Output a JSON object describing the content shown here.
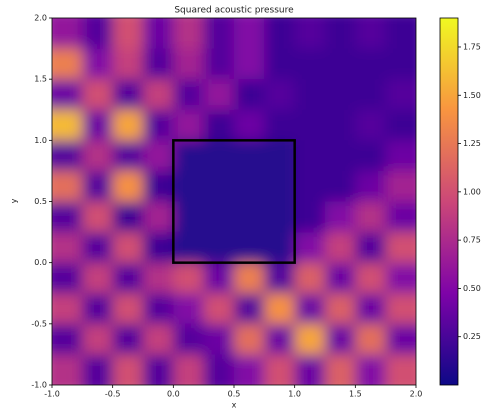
{
  "chart_data": {
    "type": "heatmap",
    "title": "Squared acoustic pressure",
    "x_label": "x",
    "y_label": "y",
    "colormap": "plasma",
    "xlim": [
      -1.0,
      2.0
    ],
    "ylim": [
      -1.0,
      2.0
    ],
    "xticks": [
      {
        "value": -1.0,
        "label": "-1.0"
      },
      -0.5,
      {
        "value": 0.0,
        "label": "0.0"
      },
      0.5,
      {
        "value": 1.0,
        "label": "1.0"
      },
      1.5,
      {
        "value": 2.0,
        "label": "2.0"
      }
    ],
    "yticks": [
      {
        "value": -1.0,
        "label": "-1.0"
      },
      -0.5,
      {
        "value": 0.0,
        "label": "0.0"
      },
      0.5,
      {
        "value": 1.0,
        "label": "1.0"
      },
      1.5,
      {
        "value": 2.0,
        "label": "2.0"
      }
    ],
    "clim": [
      0,
      1.9
    ],
    "cticks": [
      {
        "value": 0.25,
        "label": "0.25"
      },
      {
        "value": 0.5,
        "label": "0.50"
      },
      {
        "value": 0.75,
        "label": "0.75"
      },
      {
        "value": 1.0,
        "label": "1.00"
      },
      {
        "value": 1.25,
        "label": "1.25"
      },
      {
        "value": 1.5,
        "label": "1.50"
      },
      {
        "value": 1.75,
        "label": "1.75"
      }
    ],
    "x": [
      -0.875,
      -0.625,
      -0.375,
      -0.125,
      0.125,
      0.375,
      0.625,
      0.875,
      1.125,
      1.375,
      1.625,
      1.875
    ],
    "y": [
      1.875,
      1.625,
      1.375,
      1.125,
      0.875,
      0.625,
      0.375,
      0.125,
      -0.125,
      -0.375,
      -0.625,
      -0.875
    ],
    "z": [
      [
        0.6,
        0.3,
        1.0,
        0.4,
        0.8,
        0.3,
        0.5,
        0.2,
        0.3,
        0.2,
        0.3,
        0.2
      ],
      [
        1.3,
        0.5,
        0.9,
        0.3,
        0.7,
        0.3,
        0.5,
        0.2,
        0.2,
        0.2,
        0.2,
        0.2
      ],
      [
        0.4,
        1.0,
        0.3,
        0.9,
        0.3,
        0.6,
        0.2,
        0.3,
        0.2,
        0.2,
        0.2,
        0.3
      ],
      [
        1.6,
        0.4,
        1.5,
        0.3,
        0.6,
        0.2,
        0.4,
        0.2,
        0.2,
        0.2,
        0.3,
        0.2
      ],
      [
        0.3,
        0.8,
        0.3,
        0.6,
        0.1,
        0.1,
        0.1,
        0.1,
        0.2,
        0.2,
        0.2,
        0.4
      ],
      [
        1.2,
        0.3,
        1.4,
        0.2,
        0.1,
        0.1,
        0.1,
        0.1,
        0.2,
        0.2,
        0.4,
        0.7
      ],
      [
        0.3,
        1.0,
        0.2,
        0.7,
        0.1,
        0.1,
        0.1,
        0.1,
        0.2,
        0.5,
        0.8,
        0.4
      ],
      [
        0.8,
        0.3,
        1.0,
        0.2,
        0.1,
        0.1,
        0.1,
        0.1,
        0.5,
        0.9,
        0.3,
        1.0
      ],
      [
        0.3,
        0.9,
        0.3,
        0.8,
        1.0,
        0.4,
        1.3,
        0.3,
        1.1,
        0.4,
        1.0,
        0.5
      ],
      [
        0.9,
        0.3,
        1.0,
        0.3,
        0.5,
        1.0,
        0.3,
        1.4,
        0.4,
        1.1,
        0.4,
        1.0
      ],
      [
        0.3,
        0.9,
        0.3,
        0.9,
        0.3,
        0.4,
        1.2,
        0.4,
        1.5,
        0.4,
        1.2,
        0.4
      ],
      [
        0.8,
        0.3,
        1.0,
        0.3,
        0.9,
        0.3,
        0.5,
        1.0,
        0.4,
        1.1,
        0.5,
        1.0
      ]
    ],
    "obstacle": {
      "x": [
        0,
        1
      ],
      "y": [
        0,
        1
      ]
    }
  }
}
